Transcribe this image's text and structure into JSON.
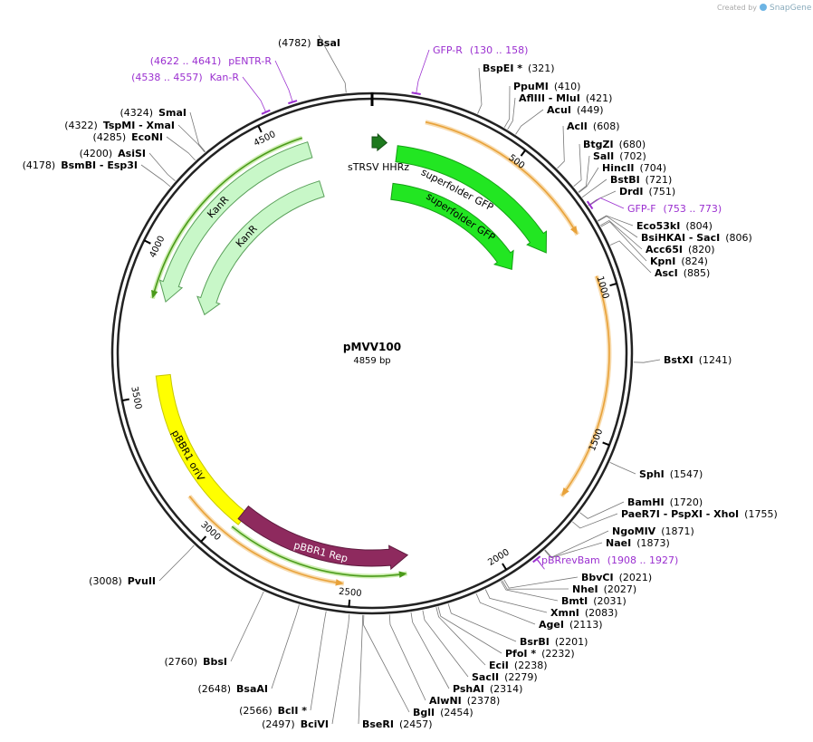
{
  "title": "pMVV100",
  "length": "4859 bp",
  "watermark": {
    "prefix": "Created by",
    "brand": "SnapGene"
  },
  "ticks": [
    "500",
    "1000",
    "1500",
    "2000",
    "2500",
    "3000",
    "3500",
    "4000",
    "4500"
  ],
  "enzymes": [
    {
      "name": "BsaI",
      "pos": "(4782)"
    },
    {
      "name": "BspEI *",
      "pos": "(321)"
    },
    {
      "name": "PpuMI",
      "pos": "(410)"
    },
    {
      "name": "AflIII - MluI",
      "pos": "(421)"
    },
    {
      "name": "AcuI",
      "pos": "(449)"
    },
    {
      "name": "AclI",
      "pos": "(608)"
    },
    {
      "name": "BtgZI",
      "pos": "(680)"
    },
    {
      "name": "SalI",
      "pos": "(702)"
    },
    {
      "name": "HincII",
      "pos": "(704)"
    },
    {
      "name": "BstBI",
      "pos": "(721)"
    },
    {
      "name": "DrdI",
      "pos": "(751)"
    },
    {
      "name": "Eco53kI",
      "pos": "(804)"
    },
    {
      "name": "BsiHKAI - SacI",
      "pos": "(806)"
    },
    {
      "name": "Acc65I",
      "pos": "(820)"
    },
    {
      "name": "KpnI",
      "pos": "(824)"
    },
    {
      "name": "AscI",
      "pos": "(885)"
    },
    {
      "name": "BstXI",
      "pos": "(1241)"
    },
    {
      "name": "SphI",
      "pos": "(1547)"
    },
    {
      "name": "BamHI",
      "pos": "(1720)"
    },
    {
      "name": "PaeR7I - PspXI - XhoI",
      "pos": "(1755)"
    },
    {
      "name": "NgoMIV",
      "pos": "(1871)"
    },
    {
      "name": "NaeI",
      "pos": "(1873)"
    },
    {
      "name": "BbvCI",
      "pos": "(2021)"
    },
    {
      "name": "NheI",
      "pos": "(2027)"
    },
    {
      "name": "BmtI",
      "pos": "(2031)"
    },
    {
      "name": "XmnI",
      "pos": "(2083)"
    },
    {
      "name": "AgeI",
      "pos": "(2113)"
    },
    {
      "name": "BsrBI",
      "pos": "(2201)"
    },
    {
      "name": "PfoI *",
      "pos": "(2232)"
    },
    {
      "name": "EciI",
      "pos": "(2238)"
    },
    {
      "name": "SacII",
      "pos": "(2279)"
    },
    {
      "name": "PshAI",
      "pos": "(2314)"
    },
    {
      "name": "AlwNI",
      "pos": "(2378)"
    },
    {
      "name": "BglI",
      "pos": "(2454)"
    },
    {
      "name": "BseRI",
      "pos": "(2457)"
    },
    {
      "name": "BciVI",
      "pos": "(2497)"
    },
    {
      "name": "BclI *",
      "pos": "(2566)"
    },
    {
      "name": "BsaAI",
      "pos": "(2648)"
    },
    {
      "name": "BbsI",
      "pos": "(2760)"
    },
    {
      "name": "PvuII",
      "pos": "(3008)"
    },
    {
      "name": "BsmBI - Esp3I",
      "pos": "(4178)"
    },
    {
      "name": "AsiSI",
      "pos": "(4200)"
    },
    {
      "name": "EcoNI",
      "pos": "(4285)"
    },
    {
      "name": "TspMI - XmaI",
      "pos": "(4322)"
    },
    {
      "name": "SmaI",
      "pos": "(4324)"
    }
  ],
  "primers": [
    {
      "name": "GFP-R",
      "range": "(130 .. 158)"
    },
    {
      "name": "pENTR-R",
      "range": "(4622 .. 4641)"
    },
    {
      "name": "Kan-R",
      "range": "(4538 .. 4557)"
    },
    {
      "name": "GFP-F",
      "range": "(753 .. 773)"
    },
    {
      "name": "pBRrevBam",
      "range": "(1908 .. 1927)"
    }
  ],
  "features": [
    "sTRSV HHRz",
    "superfolder GFP",
    "superfolder GFP",
    "KanR",
    "KanR",
    "pBBR1 oriV",
    "pBBR1 Rep"
  ]
}
